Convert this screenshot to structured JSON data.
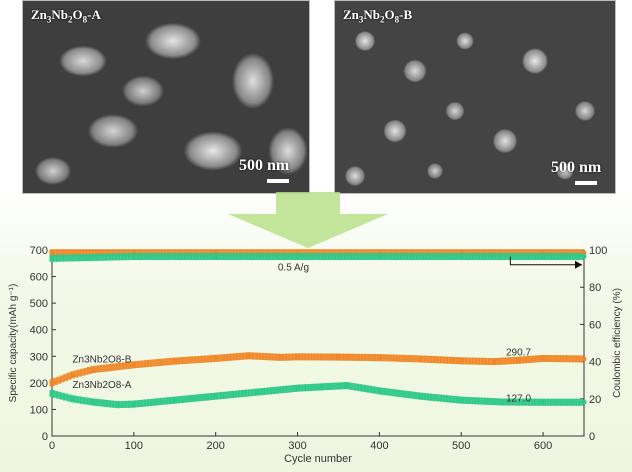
{
  "sem_images": [
    {
      "label_base": "Zn",
      "label_sub1": "3",
      "label_mid": "Nb",
      "label_sub2": "2",
      "label_end": "O",
      "label_sub3": "8",
      "label_suffix": "-A",
      "scale": "500 nm"
    },
    {
      "label_base": "Zn",
      "label_sub1": "3",
      "label_mid": "Nb",
      "label_sub2": "2",
      "label_end": "O",
      "label_sub3": "8",
      "label_suffix": "-B",
      "scale": "500 nm"
    }
  ],
  "colors": {
    "series_b": "#f0882a",
    "series_a": "#2fc98a",
    "arrow": "#b7e08a"
  },
  "chart_data": {
    "type": "scatter",
    "xlabel": "Cycle number",
    "ylabel_left": "Specific capacity(mAh g⁻¹)",
    "ylabel_right": "Coulombic efficiency (%)",
    "xlim": [
      0,
      650
    ],
    "ylim_left": [
      0,
      700
    ],
    "ylim_right": [
      0,
      100
    ],
    "x_ticks": [
      0,
      100,
      200,
      300,
      400,
      500,
      600
    ],
    "y_ticks_left": [
      0,
      100,
      200,
      300,
      400,
      500,
      600,
      700
    ],
    "y_ticks_right": [
      0,
      20,
      40,
      60,
      80,
      100
    ],
    "annotations": {
      "rate": "0.5 A/g",
      "final_b": "290.7",
      "final_a": "127.0",
      "label_b": "Zn3Nb2O8-B",
      "label_a": "Zn3Nb2O8-A"
    },
    "series": [
      {
        "name": "Zn3Nb2O8-B",
        "axis": "left",
        "points": [
          [
            0,
            200
          ],
          [
            25,
            230
          ],
          [
            50,
            250
          ],
          [
            100,
            268
          ],
          [
            150,
            282
          ],
          [
            200,
            292
          ],
          [
            240,
            302
          ],
          [
            280,
            296
          ],
          [
            300,
            298
          ],
          [
            350,
            297
          ],
          [
            400,
            295
          ],
          [
            450,
            290
          ],
          [
            500,
            283
          ],
          [
            540,
            280
          ],
          [
            570,
            285
          ],
          [
            600,
            292
          ],
          [
            650,
            290
          ]
        ]
      },
      {
        "name": "Zn3Nb2O8-A",
        "axis": "left",
        "points": [
          [
            0,
            160
          ],
          [
            25,
            140
          ],
          [
            50,
            128
          ],
          [
            80,
            118
          ],
          [
            100,
            120
          ],
          [
            150,
            135
          ],
          [
            200,
            150
          ],
          [
            250,
            165
          ],
          [
            300,
            180
          ],
          [
            330,
            185
          ],
          [
            360,
            190
          ],
          [
            400,
            170
          ],
          [
            450,
            150
          ],
          [
            500,
            135
          ],
          [
            550,
            128
          ],
          [
            600,
            127
          ],
          [
            650,
            127
          ]
        ]
      },
      {
        "name": "Coulombic efficiency (B)",
        "axis": "right",
        "points": [
          [
            0,
            98.5
          ],
          [
            100,
            98.5
          ],
          [
            200,
            98.5
          ],
          [
            300,
            98.5
          ],
          [
            400,
            98.5
          ],
          [
            500,
            98.5
          ],
          [
            600,
            98.5
          ],
          [
            650,
            98.5
          ]
        ]
      },
      {
        "name": "Coulombic efficiency (A)",
        "axis": "right",
        "points": [
          [
            0,
            95.5
          ],
          [
            100,
            96.5
          ],
          [
            200,
            96.5
          ],
          [
            300,
            96.5
          ],
          [
            400,
            96.5
          ],
          [
            500,
            96.5
          ],
          [
            600,
            96.5
          ],
          [
            650,
            96.5
          ]
        ]
      }
    ]
  }
}
